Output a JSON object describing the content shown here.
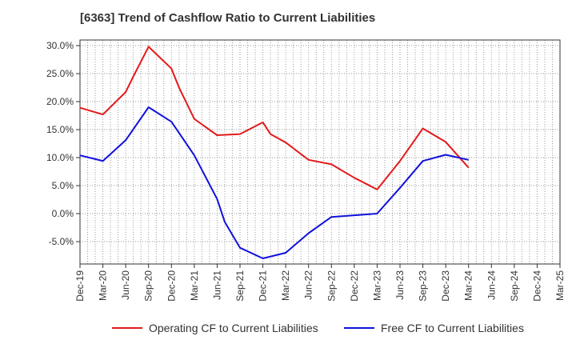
{
  "chart_data": {
    "type": "line",
    "title": "[6363]  Trend of Cashflow Ratio to Current Liabilities",
    "xlabel": "",
    "ylabel": "",
    "x": [
      "Dec-19",
      "Mar-20",
      "Jun-20",
      "Sep-20",
      "Dec-20",
      "Mar-21",
      "Jun-21",
      "Sep-21",
      "Dec-21",
      "Mar-22",
      "Jun-22",
      "Sep-22",
      "Dec-22",
      "Mar-23",
      "Jun-23",
      "Sep-23",
      "Dec-23",
      "Mar-24",
      "Jun-24",
      "Sep-24",
      "Dec-24",
      "Mar-25"
    ],
    "ylim": [
      -9,
      31
    ],
    "yticks": [
      30,
      25,
      20,
      15,
      10,
      5,
      0,
      -5
    ],
    "ytick_labels": [
      "30.0%",
      "25.0%",
      "20.0%",
      "15.0%",
      "10.0%",
      "5.0%",
      "0.0%",
      "-5.0%"
    ],
    "grid": true,
    "legend_position": "bottom",
    "series": [
      {
        "name": "Operating CF to Current Liabilities",
        "color": "#e31a1c",
        "points": [
          [
            "Dec-19",
            18.9
          ],
          [
            "Mar-20",
            17.7
          ],
          [
            "Jun-20",
            21.7
          ],
          [
            "Jul-20",
            24.5
          ],
          [
            "Sep-20",
            29.8
          ],
          [
            "Dec-20",
            25.9
          ],
          [
            "Jan-21",
            22.5
          ],
          [
            "Mar-21",
            16.9
          ],
          [
            "Jun-21",
            14.0
          ],
          [
            "Sep-21",
            14.2
          ],
          [
            "Dec-21",
            16.3
          ],
          [
            "Jan-22",
            14.2
          ],
          [
            "Mar-22",
            12.7
          ],
          [
            "Jun-22",
            9.6
          ],
          [
            "Sep-22",
            8.8
          ],
          [
            "Dec-22",
            6.4
          ],
          [
            "Mar-23",
            4.3
          ],
          [
            "Jun-23",
            9.4
          ],
          [
            "Sep-23",
            15.2
          ],
          [
            "Dec-23",
            12.8
          ],
          [
            "Mar-24",
            8.2
          ]
        ]
      },
      {
        "name": "Free CF to Current Liabilities",
        "color": "#1111dd",
        "points": [
          [
            "Dec-19",
            10.4
          ],
          [
            "Mar-20",
            9.4
          ],
          [
            "Jun-20",
            13.1
          ],
          [
            "Sep-20",
            19.0
          ],
          [
            "Dec-20",
            16.4
          ],
          [
            "Mar-21",
            10.4
          ],
          [
            "Jun-21",
            2.6
          ],
          [
            "Jul-21",
            -1.5
          ],
          [
            "Sep-21",
            -6.1
          ],
          [
            "Dec-21",
            -8.0
          ],
          [
            "Mar-22",
            -7.0
          ],
          [
            "Jun-22",
            -3.5
          ],
          [
            "Sep-22",
            -0.6
          ],
          [
            "Dec-22",
            -0.3
          ],
          [
            "Mar-23",
            0.0
          ],
          [
            "Jun-23",
            4.6
          ],
          [
            "Sep-23",
            9.4
          ],
          [
            "Dec-23",
            10.5
          ],
          [
            "Mar-24",
            9.6
          ]
        ]
      }
    ]
  }
}
